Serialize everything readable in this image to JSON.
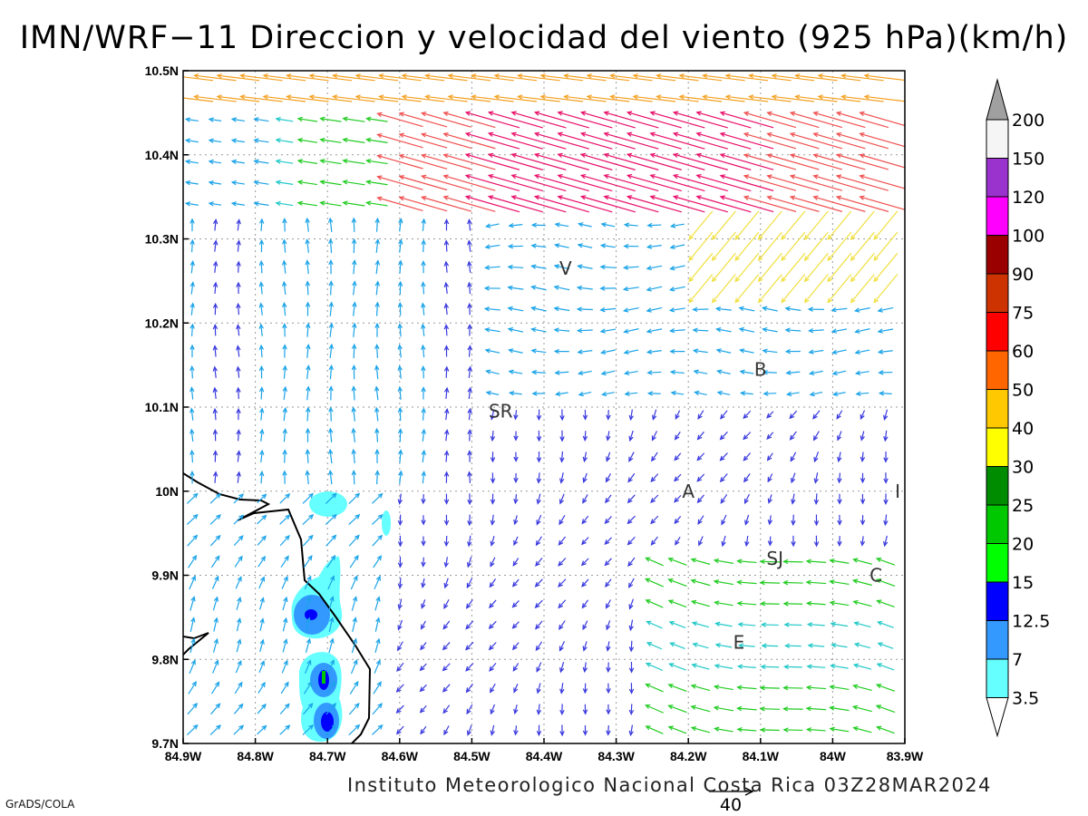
{
  "title": "IMN/WRF−11 Direccion y velocidad del viento (925 hPa)(km/h)",
  "credit": "Instituto Meteorologico Nacional Costa Rica 03Z28MAR2024",
  "software": "GrADS/COLA",
  "reference_vector": {
    "value": "40",
    "length_kmh": 40
  },
  "map": {
    "lon_range": [
      -84.9,
      -83.9
    ],
    "lat_range": [
      9.7,
      10.5
    ],
    "x_ticks": [
      "84.9W",
      "84.8W",
      "84.7W",
      "84.6W",
      "84.5W",
      "84.4W",
      "84.3W",
      "84.2W",
      "84.1W",
      "84W",
      "83.9W"
    ],
    "y_ticks": [
      "10.5N",
      "10.4N",
      "10.3N",
      "10.2N",
      "10.1N",
      "10N",
      "9.9N",
      "9.8N",
      "9.7N"
    ],
    "grid": "dotted",
    "cities": [
      {
        "label": "V",
        "lon": -84.37,
        "lat": 10.265
      },
      {
        "label": "B",
        "lon": -84.1,
        "lat": 10.145
      },
      {
        "label": "SR",
        "lon": -84.46,
        "lat": 10.095
      },
      {
        "label": "A",
        "lon": -84.2,
        "lat": 10.0
      },
      {
        "label": "I",
        "lon": -83.91,
        "lat": 10.0
      },
      {
        "label": "SJ",
        "lon": -84.08,
        "lat": 9.92
      },
      {
        "label": "C",
        "lon": -83.94,
        "lat": 9.9
      },
      {
        "label": "E",
        "lon": -84.13,
        "lat": 9.82
      }
    ]
  },
  "colorbar": {
    "levels": [
      "200",
      "150",
      "120",
      "100",
      "90",
      "75",
      "60",
      "50",
      "40",
      "30",
      "25",
      "20",
      "15",
      "12.5",
      "7",
      "3.5"
    ],
    "colors": [
      "#a0a0a0",
      "#f5f5f5",
      "#9a32cd",
      "#ff00ff",
      "#9b0000",
      "#cd3300",
      "#ff0000",
      "#ff6600",
      "#ffc800",
      "#ffff00",
      "#008c00",
      "#00c800",
      "#00ff00",
      "#0000ff",
      "#3399ff",
      "#66ffff",
      "#ffffff"
    ]
  }
}
